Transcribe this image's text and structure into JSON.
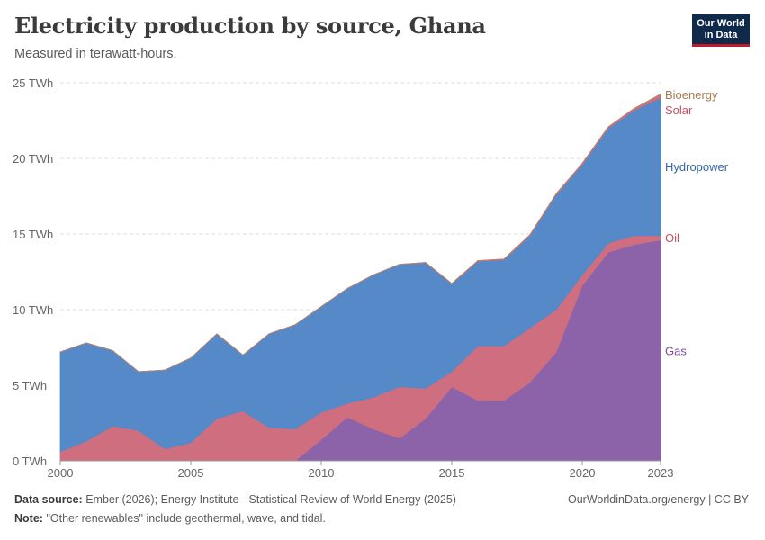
{
  "header": {
    "title": "Electricity production by source, Ghana",
    "subtitle": "Measured in terawatt-hours.",
    "logo_line1": "Our World",
    "logo_line2": "in Data"
  },
  "footer": {
    "source_label": "Data source:",
    "source_text": "Ember (2026); Energy Institute - Statistical Review of World Energy (2025)",
    "note_label": "Note:",
    "note_text": "\"Other renewables\" include geothermal, wave, and tidal.",
    "attribution": "OurWorldinData.org/energy | CC BY"
  },
  "chart_data": {
    "type": "area",
    "stacked": true,
    "title": "Electricity production by source, Ghana",
    "subtitle": "Measured in terawatt-hours.",
    "xlabel": "",
    "ylabel": "",
    "unit": "TWh",
    "x": [
      2000,
      2001,
      2002,
      2003,
      2004,
      2005,
      2006,
      2007,
      2008,
      2009,
      2010,
      2011,
      2012,
      2013,
      2014,
      2015,
      2016,
      2017,
      2018,
      2019,
      2020,
      2021,
      2022,
      2023
    ],
    "x_ticks": [
      "2000",
      "2005",
      "2010",
      "2015",
      "2020",
      "2023"
    ],
    "x_tick_values": [
      2000,
      2005,
      2010,
      2015,
      2020,
      2023
    ],
    "y_ticks": [
      "0 TWh",
      "5 TWh",
      "10 TWh",
      "15 TWh",
      "20 TWh",
      "25 TWh"
    ],
    "y_tick_values": [
      0,
      5,
      10,
      15,
      20,
      25
    ],
    "xlim": [
      2000,
      2023
    ],
    "ylim": [
      0,
      25
    ],
    "grid": "horizontal dashed",
    "legend": "right, inline labels",
    "series": [
      {
        "name": "Gas",
        "color": "#8c63a8",
        "values": [
          0,
          0,
          0,
          0,
          0,
          0,
          0,
          0,
          0,
          0,
          1.4,
          2.9,
          2.1,
          1.5,
          2.8,
          4.9,
          4.0,
          4.0,
          5.2,
          7.2,
          11.6,
          13.8,
          14.3,
          14.6
        ]
      },
      {
        "name": "Oil",
        "color": "#cf6e7e",
        "values": [
          0.6,
          1.3,
          2.3,
          2.0,
          0.8,
          1.2,
          2.8,
          3.3,
          2.2,
          2.1,
          1.8,
          0.9,
          2.1,
          3.4,
          2.0,
          1.0,
          3.6,
          3.6,
          3.6,
          2.8,
          0.7,
          0.6,
          0.6,
          0.3
        ]
      },
      {
        "name": "Hydropower",
        "color": "#5589c8",
        "values": [
          6.6,
          6.5,
          5.0,
          3.9,
          5.2,
          5.6,
          5.6,
          3.7,
          6.2,
          6.9,
          7.0,
          7.6,
          8.1,
          8.1,
          8.3,
          5.8,
          5.6,
          5.7,
          6.1,
          7.6,
          7.3,
          7.6,
          8.3,
          9.1
        ]
      },
      {
        "name": "Solar",
        "color": "#cf6e7e",
        "values": [
          0,
          0,
          0,
          0,
          0,
          0,
          0,
          0,
          0,
          0,
          0,
          0,
          0,
          0,
          0.02,
          0.03,
          0.04,
          0.05,
          0.06,
          0.06,
          0.07,
          0.09,
          0.12,
          0.2
        ]
      },
      {
        "name": "Bioenergy",
        "color": "#b88760",
        "values": [
          0,
          0,
          0,
          0,
          0,
          0,
          0,
          0,
          0,
          0,
          0,
          0,
          0,
          0,
          0,
          0,
          0,
          0,
          0,
          0,
          0,
          0,
          0,
          0.05
        ]
      }
    ],
    "label_colors": {
      "Bioenergy": "#a77a4f",
      "Solar": "#c5515e",
      "Hydropower": "#3266a8",
      "Oil": "#c5515e",
      "Gas": "#7b4d99"
    }
  }
}
